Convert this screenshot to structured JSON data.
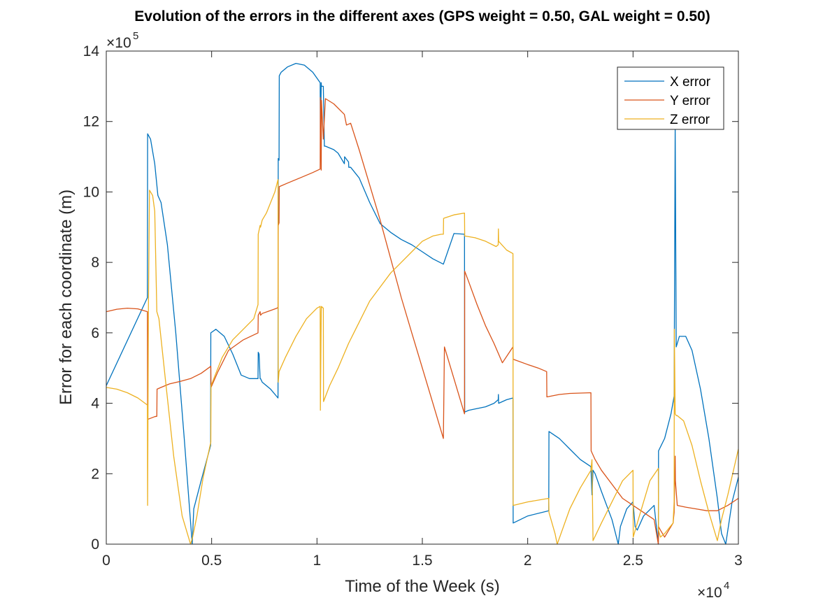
{
  "chart_data": {
    "type": "line",
    "title": "Evolution of the errors in the different axes (GPS weight = 0.50, GAL weight = 0.50)",
    "xlabel": "Time of the Week (s)",
    "ylabel": "Error for each coordinate (m)",
    "xlim": [
      0,
      30000
    ],
    "ylim": [
      0,
      1400000
    ],
    "x_ticks": [
      0,
      5000,
      10000,
      15000,
      20000,
      25000,
      30000
    ],
    "x_tick_labels": [
      "0",
      "0.5",
      "1",
      "1.5",
      "2",
      "2.5",
      "3"
    ],
    "y_ticks": [
      0,
      200000,
      400000,
      600000,
      800000,
      1000000,
      1200000,
      1400000
    ],
    "y_tick_labels": [
      "0",
      "2",
      "4",
      "6",
      "8",
      "10",
      "12",
      "14"
    ],
    "x_multiplier": {
      "base": "×10",
      "exp": "4"
    },
    "y_multiplier": {
      "base": "×10",
      "exp": "5"
    },
    "grid": false,
    "legend_position": "top-right",
    "series": [
      {
        "name": "X error",
        "color": "#0072BD",
        "x": [
          0,
          1950,
          1960,
          2100,
          2300,
          2450,
          2600,
          2900,
          3300,
          3700,
          4080,
          4150,
          4500,
          4950,
          4960,
          5200,
          5600,
          6000,
          6400,
          6800,
          7200,
          7210,
          7250,
          7300,
          7320,
          7400,
          7800,
          8150,
          8160,
          8200,
          8210,
          8300,
          8600,
          9000,
          9400,
          9800,
          10150,
          10160,
          10200,
          10210,
          10300,
          10350,
          10400,
          10800,
          11000,
          11300,
          11310,
          11500,
          11510,
          11600,
          12000,
          12500,
          13000,
          13500,
          14000,
          14500,
          15000,
          15500,
          16000,
          16500,
          17000,
          17010,
          17200,
          17600,
          18000,
          18400,
          18600,
          18610,
          18620,
          19000,
          19300,
          19310,
          20000,
          21000,
          21010,
          21500,
          22000,
          22500,
          23000,
          23050,
          23100,
          23200,
          23500,
          24000,
          24300,
          24400,
          24700,
          25000,
          25100,
          25200,
          25500,
          26000,
          26200,
          26210,
          26500,
          26800,
          26950,
          27000,
          27050,
          27100,
          27200,
          27500,
          27800,
          28200,
          28600,
          29000,
          29200,
          29400,
          29700,
          30000
        ],
        "y": [
          450000,
          700000,
          1165000,
          1150000,
          1080000,
          990000,
          970000,
          850000,
          600000,
          300000,
          0,
          100000,
          180000,
          280000,
          600000,
          610000,
          590000,
          540000,
          480000,
          470000,
          470000,
          545000,
          540000,
          470000,
          470000,
          460000,
          440000,
          415000,
          1095000,
          1090000,
          1330000,
          1340000,
          1355000,
          1365000,
          1360000,
          1340000,
          1310000,
          1135000,
          1310000,
          1300000,
          1300000,
          1130000,
          1130000,
          1120000,
          1110000,
          1080000,
          1100000,
          1085000,
          1070000,
          1070000,
          1040000,
          970000,
          910000,
          885000,
          865000,
          850000,
          830000,
          810000,
          795000,
          882000,
          880000,
          375000,
          380000,
          385000,
          390000,
          400000,
          410000,
          425000,
          400000,
          410000,
          415000,
          60000,
          80000,
          95000,
          320000,
          300000,
          270000,
          240000,
          220000,
          140000,
          210000,
          200000,
          150000,
          70000,
          0,
          50000,
          100000,
          120000,
          50000,
          40000,
          80000,
          110000,
          0,
          265000,
          300000,
          370000,
          420000,
          1190000,
          560000,
          570000,
          590000,
          590000,
          550000,
          440000,
          300000,
          130000,
          30000,
          0,
          120000,
          190000
        ]
      },
      {
        "name": "Y error",
        "color": "#D95319",
        "x": [
          0,
          500,
          1000,
          1500,
          1950,
          1960,
          2000,
          2300,
          2400,
          2410,
          2600,
          3000,
          3500,
          4000,
          4500,
          4960,
          4970,
          5300,
          5800,
          6500,
          7200,
          7210,
          7300,
          7320,
          7400,
          8100,
          8150,
          8160,
          8200,
          8210,
          8600,
          9200,
          9800,
          10150,
          10160,
          10200,
          10210,
          10300,
          10400,
          10800,
          11300,
          11400,
          11600,
          12000,
          12500,
          13000,
          13500,
          14000,
          14500,
          15000,
          15500,
          16000,
          16050,
          17000,
          17010,
          17200,
          17600,
          18000,
          18400,
          18800,
          19300,
          19310,
          20000,
          20500,
          20900,
          20910,
          21500,
          22000,
          23000,
          23010,
          23200,
          23500,
          24000,
          24500,
          25000,
          25500,
          26000,
          26200,
          26210,
          26300,
          26500,
          26900,
          26950,
          27000,
          27010,
          27100,
          27500,
          28000,
          28500,
          29000,
          29500,
          30000
        ],
        "y": [
          660000,
          667000,
          670000,
          668000,
          660000,
          355000,
          355000,
          362000,
          363000,
          440000,
          445000,
          455000,
          462000,
          470000,
          485000,
          505000,
          445000,
          490000,
          550000,
          580000,
          600000,
          650000,
          660000,
          650000,
          655000,
          670000,
          672000,
          905000,
          912000,
          1015000,
          1025000,
          1040000,
          1055000,
          1065000,
          1268000,
          1062000,
          1260000,
          1150000,
          1265000,
          1250000,
          1220000,
          1190000,
          1195000,
          1120000,
          1020000,
          920000,
          810000,
          700000,
          600000,
          500000,
          400000,
          300000,
          560000,
          370000,
          775000,
          745000,
          680000,
          620000,
          570000,
          515000,
          560000,
          525000,
          510000,
          500000,
          490000,
          418000,
          425000,
          428000,
          430000,
          265000,
          240000,
          210000,
          170000,
          130000,
          110000,
          90000,
          70000,
          0,
          50000,
          40000,
          20000,
          60000,
          90000,
          250000,
          180000,
          110000,
          105000,
          100000,
          95000,
          95000,
          110000,
          130000
        ]
      },
      {
        "name": "Z error",
        "color": "#EDB120",
        "x": [
          0,
          500,
          1000,
          1500,
          1950,
          1960,
          2000,
          2050,
          2200,
          2300,
          2400,
          2500,
          2800,
          3200,
          3600,
          4000,
          4100,
          4300,
          4600,
          4960,
          4970,
          5500,
          6000,
          6500,
          7000,
          7200,
          7210,
          7300,
          7320,
          7400,
          7600,
          8000,
          8150,
          8160,
          8200,
          8500,
          9000,
          9500,
          10000,
          10150,
          10160,
          10200,
          10210,
          10300,
          10310,
          10600,
          11000,
          11500,
          12000,
          12500,
          13000,
          13500,
          14000,
          14500,
          15000,
          15500,
          15900,
          16000,
          16010,
          16500,
          17000,
          17010,
          17500,
          18000,
          18500,
          18600,
          18610,
          18620,
          19000,
          19300,
          19310,
          20000,
          21000,
          21010,
          21300,
          21400,
          21700,
          22000,
          22500,
          23000,
          23050,
          23100,
          23500,
          24000,
          24500,
          25000,
          25010,
          25200,
          25800,
          26200,
          26210,
          26300,
          26500,
          26900,
          26950,
          26960,
          27000,
          27050,
          27100,
          27400,
          27800,
          28200,
          28600,
          29000,
          29200,
          29500,
          30000
        ],
        "y": [
          445000,
          440000,
          430000,
          415000,
          395000,
          110000,
          680000,
          1005000,
          990000,
          945000,
          660000,
          640000,
          470000,
          250000,
          80000,
          0,
          20000,
          80000,
          190000,
          290000,
          450000,
          530000,
          580000,
          610000,
          640000,
          680000,
          880000,
          905000,
          900000,
          920000,
          940000,
          1000000,
          1035000,
          460000,
          490000,
          530000,
          590000,
          640000,
          670000,
          675000,
          380000,
          660000,
          675000,
          670000,
          405000,
          450000,
          500000,
          570000,
          630000,
          690000,
          730000,
          770000,
          800000,
          830000,
          860000,
          875000,
          880000,
          880000,
          925000,
          935000,
          940000,
          875000,
          870000,
          860000,
          845000,
          850000,
          895000,
          860000,
          835000,
          825000,
          110000,
          120000,
          130000,
          90000,
          30000,
          0,
          50000,
          100000,
          160000,
          210000,
          240000,
          10000,
          60000,
          120000,
          180000,
          210000,
          20000,
          60000,
          180000,
          215000,
          40000,
          20000,
          30000,
          60000,
          120000,
          610000,
          370000,
          365000,
          365000,
          350000,
          280000,
          180000,
          90000,
          10000,
          70000,
          140000,
          270000
        ]
      }
    ]
  }
}
